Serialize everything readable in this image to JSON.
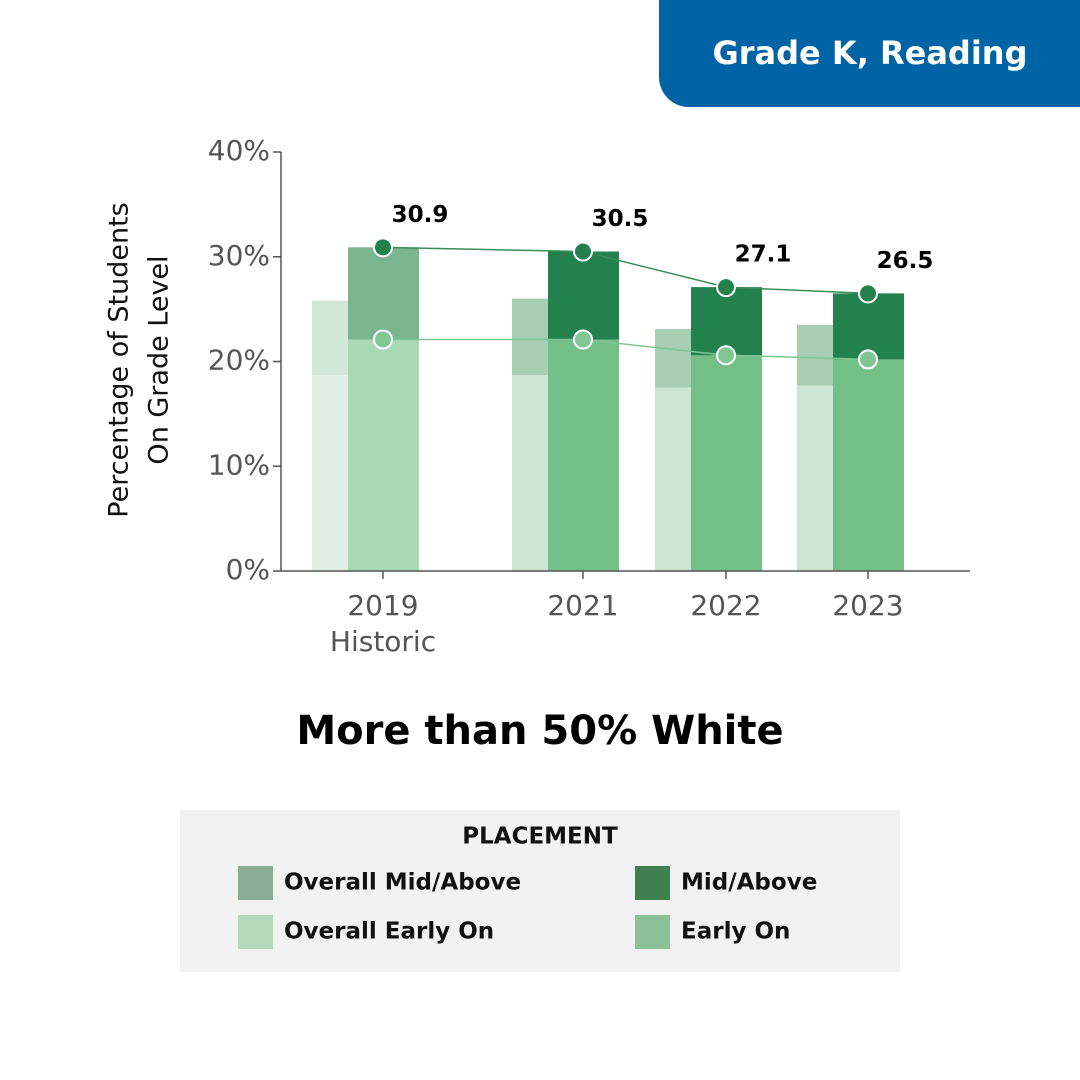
{
  "chart_data": {
    "type": "bar",
    "header": "Grade K, Reading",
    "subtitle": "More than 50% White",
    "y_label": [
      "Percentage of Students",
      "On Grade Level"
    ],
    "categories": [
      "2019",
      "2021",
      "2022",
      "2023"
    ],
    "category_notes": [
      "Historic",
      null,
      null,
      null
    ],
    "ylim": [
      0,
      40
    ],
    "yticks": [
      {
        "value": 0,
        "label": "0%"
      },
      {
        "value": 10,
        "label": "10%"
      },
      {
        "value": 20,
        "label": "20%"
      },
      {
        "value": 30,
        "label": "30%"
      },
      {
        "value": 40,
        "label": "40%"
      }
    ],
    "overall_series": [
      {
        "name": "Overall Early On",
        "color": "#b5d9bb",
        "bar_colors": [
          "#e0efe3",
          "#cde6d3",
          "#cde6d3",
          "#cde6d3"
        ],
        "values": [
          18.7,
          18.7,
          17.5,
          17.7
        ]
      },
      {
        "name": "Overall Mid/Above",
        "color": "#8aae93",
        "bar_colors": [
          "#d2e8d7",
          "#a9cfb3",
          "#a9cfb3",
          "#a9cfb3"
        ],
        "values": [
          7.1,
          7.3,
          5.6,
          5.8
        ]
      }
    ],
    "series": [
      {
        "name": "Early On",
        "color": "#8cc096",
        "bar_colors": [
          "#a9d9b4",
          "#72bf88",
          "#72bf88",
          "#72bf88"
        ],
        "values": [
          22.1,
          22.1,
          20.6,
          20.2
        ]
      },
      {
        "name": "Mid/Above",
        "color": "#3f7f50",
        "bar_colors": [
          "#7ab58f",
          "#22814c",
          "#22814c",
          "#22814c"
        ],
        "values": [
          8.8,
          8.4,
          6.5,
          6.3
        ]
      }
    ],
    "totals": [
      30.9,
      30.5,
      27.1,
      26.5
    ],
    "legend_title": "PLACEMENT"
  }
}
